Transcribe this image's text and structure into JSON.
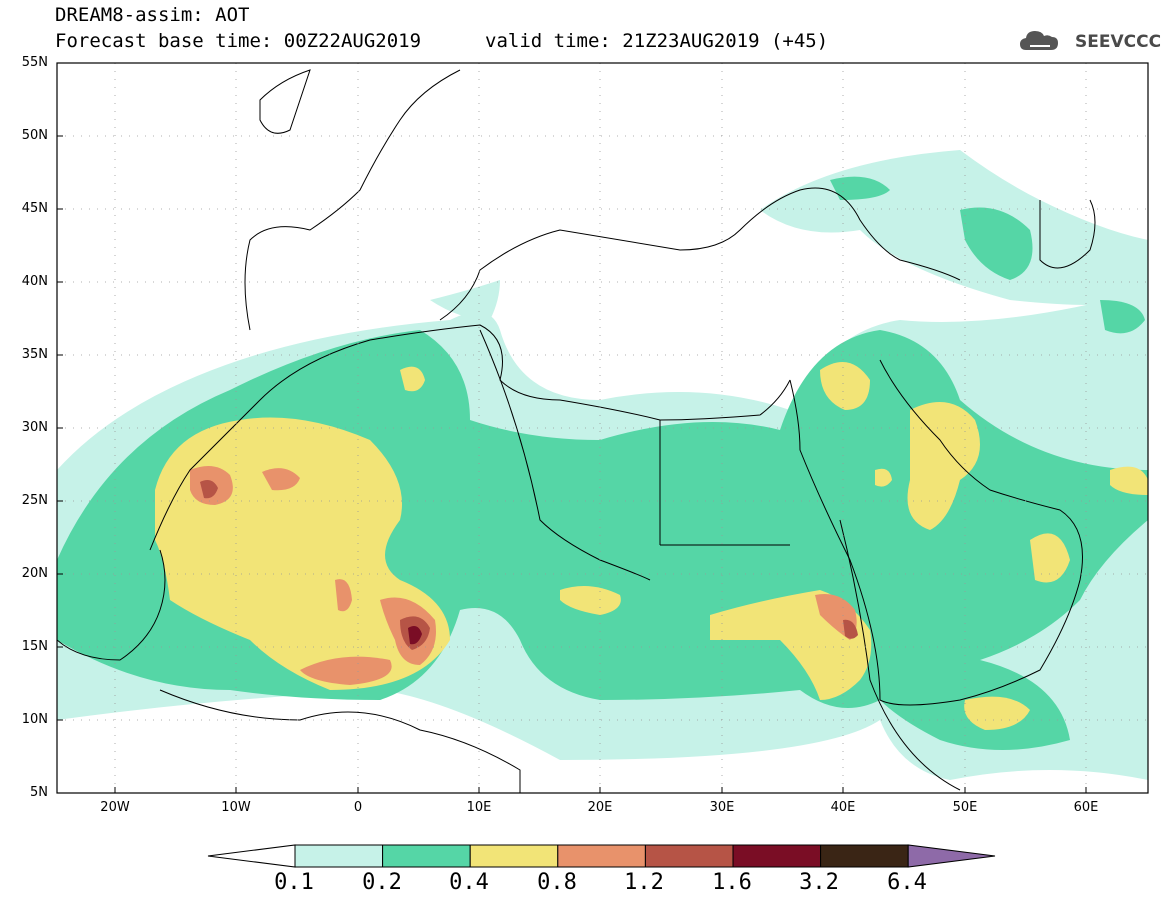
{
  "header": {
    "line1": "DREAM8-assim: AOT",
    "line2": "Forecast base time: 00Z22AUG2019",
    "line3": "valid time: 21Z23AUG2019 (+45)"
  },
  "logo": {
    "text": "SEEVCCC",
    "icon": "cloud-logo-icon"
  },
  "map": {
    "lat_labels": [
      "55N",
      "50N",
      "45N",
      "40N",
      "35N",
      "30N",
      "25N",
      "20N",
      "15N",
      "10N",
      "5N"
    ],
    "lon_labels": [
      "20W",
      "10W",
      "0",
      "10E",
      "20E",
      "30E",
      "40E",
      "50E",
      "60E"
    ],
    "lon_range": [
      -25,
      65
    ],
    "lat_range": [
      5,
      55
    ]
  },
  "colorbar": {
    "labels": [
      "0.1",
      "0.2",
      "0.4",
      "0.8",
      "1.2",
      "1.6",
      "3.2",
      "6.4"
    ],
    "colors": [
      "#ffffff",
      "#c6f2e8",
      "#55d6a6",
      "#f2e477",
      "#e8926b",
      "#b65446",
      "#7a0d25",
      "#3a2515",
      "#8e6aa8"
    ]
  }
}
